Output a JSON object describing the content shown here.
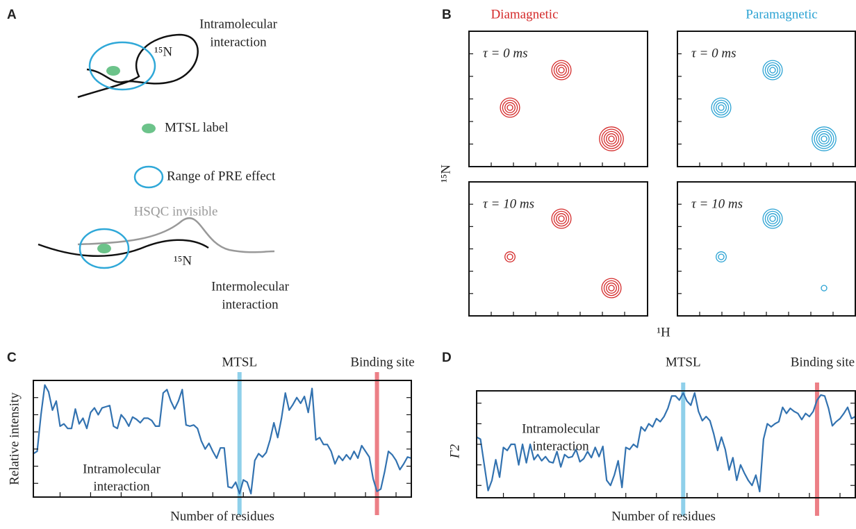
{
  "panel_labels": [
    "A",
    "B",
    "C",
    "D"
  ],
  "panel_a": {
    "intramolecular": [
      "Intramolecular",
      "interaction"
    ],
    "intra_isotope": "¹⁵N",
    "legend": [
      "MTSL label",
      "Range of PRE effect"
    ],
    "invisible": "HSQC invisible",
    "inter_isotope": "¹⁵N",
    "intermolecular": [
      "Intermolecular",
      "interaction"
    ]
  },
  "panel_b": {
    "columns": [
      {
        "title": "Diamagnetic",
        "color": "#d42a2a"
      },
      {
        "title": "Paramagnetic",
        "color": "#2aa2d3"
      }
    ],
    "rows": [
      "τ = 0 ms",
      "τ = 10 ms"
    ],
    "y_label": "¹⁵N",
    "x_label": "¹H"
  },
  "chart_data": [
    {
      "type": "line",
      "ylabel": "Relative intensity",
      "xlabel": "Number of residues",
      "annotation": [
        "Intramolecular",
        "interaction"
      ],
      "markers": [
        {
          "label": "MTSL",
          "x": 55,
          "color": "#8fd0ea"
        },
        {
          "label": "Binding site",
          "x": 91,
          "color": "#ec7f86"
        }
      ],
      "xlim": [
        1,
        100
      ],
      "ylim": [
        -0.02,
        1.0
      ],
      "xticks": [
        8,
        16,
        24,
        32,
        40,
        48,
        56,
        64,
        72,
        80,
        88,
        96
      ],
      "yticks": [
        0.1,
        0.25,
        0.4,
        0.55,
        0.7,
        0.85
      ],
      "series": [
        {
          "color": "#3272b0",
          "values": [
            0.36,
            0.38,
            0.7,
            0.96,
            0.9,
            0.74,
            0.82,
            0.6,
            0.62,
            0.58,
            0.58,
            0.75,
            0.62,
            0.67,
            0.58,
            0.72,
            0.76,
            0.7,
            0.76,
            0.77,
            0.78,
            0.6,
            0.58,
            0.7,
            0.66,
            0.6,
            0.68,
            0.66,
            0.63,
            0.67,
            0.67,
            0.65,
            0.6,
            0.6,
            0.89,
            0.92,
            0.82,
            0.75,
            0.82,
            0.92,
            0.61,
            0.6,
            0.61,
            0.58,
            0.47,
            0.4,
            0.45,
            0.38,
            0.32,
            0.41,
            0.41,
            0.07,
            0.06,
            0.11,
            0.01,
            0.13,
            0.11,
            0.01,
            0.3,
            0.36,
            0.33,
            0.37,
            0.48,
            0.63,
            0.5,
            0.67,
            0.89,
            0.74,
            0.79,
            0.85,
            0.8,
            0.86,
            0.72,
            0.93,
            0.48,
            0.5,
            0.44,
            0.44,
            0.38,
            0.27,
            0.34,
            0.3,
            0.35,
            0.31,
            0.38,
            0.32,
            0.43,
            0.38,
            0.33,
            0.14,
            0.03,
            0.05,
            0.2,
            0.38,
            0.35,
            0.3,
            0.22,
            0.27,
            0.33,
            0.32
          ]
        }
      ]
    },
    {
      "type": "line",
      "ylabel": "Γ2",
      "xlabel": "Number of residues",
      "annotation": [
        "Intramolecular",
        "interaction"
      ],
      "markers": [
        {
          "label": "MTSL",
          "x": 55,
          "color": "#8fd0ea"
        },
        {
          "label": "Binding site",
          "x": 90,
          "color": "#ec7f86"
        }
      ],
      "xlim": [
        1,
        100
      ],
      "ylim": [
        -0.02,
        1.02
      ],
      "xticks": [
        8,
        16,
        24,
        32,
        40,
        48,
        56,
        64,
        72,
        80,
        88,
        96
      ],
      "yticks": [
        0.1,
        0.3,
        0.5,
        0.7,
        0.9
      ],
      "series": [
        {
          "color": "#3272b0",
          "values": [
            0.57,
            0.55,
            0.3,
            0.05,
            0.15,
            0.35,
            0.18,
            0.47,
            0.44,
            0.5,
            0.5,
            0.3,
            0.5,
            0.32,
            0.5,
            0.35,
            0.4,
            0.34,
            0.38,
            0.33,
            0.32,
            0.43,
            0.28,
            0.4,
            0.37,
            0.38,
            0.45,
            0.33,
            0.36,
            0.43,
            0.37,
            0.47,
            0.38,
            0.48,
            0.15,
            0.1,
            0.2,
            0.34,
            0.08,
            0.47,
            0.45,
            0.5,
            0.47,
            0.67,
            0.63,
            0.7,
            0.67,
            0.75,
            0.72,
            0.77,
            0.85,
            0.97,
            0.97,
            0.93,
            1.0,
            0.92,
            0.88,
            1.0,
            0.82,
            0.73,
            0.77,
            0.73,
            0.6,
            0.44,
            0.57,
            0.45,
            0.25,
            0.37,
            0.15,
            0.3,
            0.22,
            0.15,
            0.1,
            0.2,
            0.04,
            0.55,
            0.7,
            0.67,
            0.7,
            0.72,
            0.86,
            0.8,
            0.85,
            0.82,
            0.8,
            0.74,
            0.8,
            0.77,
            0.82,
            0.93,
            0.98,
            0.97,
            0.85,
            0.68,
            0.72,
            0.75,
            0.8,
            0.86,
            0.75,
            0.77
          ]
        }
      ]
    }
  ]
}
